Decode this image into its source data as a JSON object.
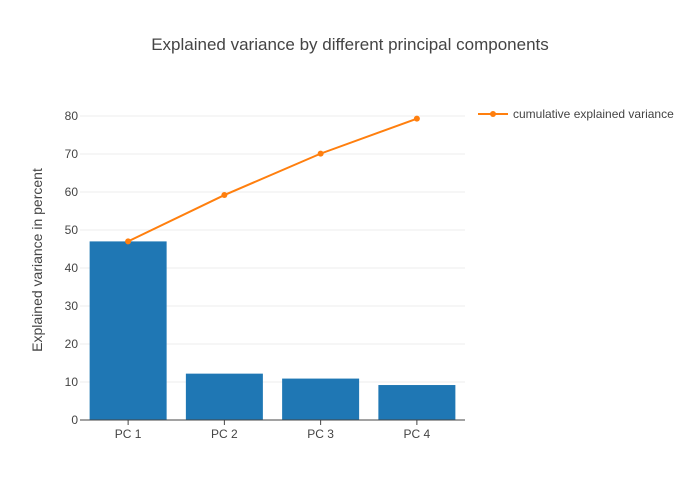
{
  "chart_data": {
    "type": "bar",
    "title": "Explained variance by different principal components",
    "xlabel": "",
    "ylabel": "Explained variance in percent",
    "categories": [
      "PC 1",
      "PC 2",
      "PC 3",
      "PC 4"
    ],
    "ylim": [
      0,
      85
    ],
    "yticks": [
      0,
      10,
      20,
      30,
      40,
      50,
      60,
      70,
      80
    ],
    "grid": true,
    "legend_position": "top-right",
    "series": [
      {
        "type": "bar",
        "values": [
          47.0,
          12.2,
          10.9,
          9.2
        ],
        "color": "#1f77b4"
      },
      {
        "name": "cumulative explained variance",
        "type": "line",
        "values": [
          47.0,
          59.2,
          70.1,
          79.3
        ],
        "color": "#ff7f0e",
        "marker": "circle"
      }
    ]
  }
}
